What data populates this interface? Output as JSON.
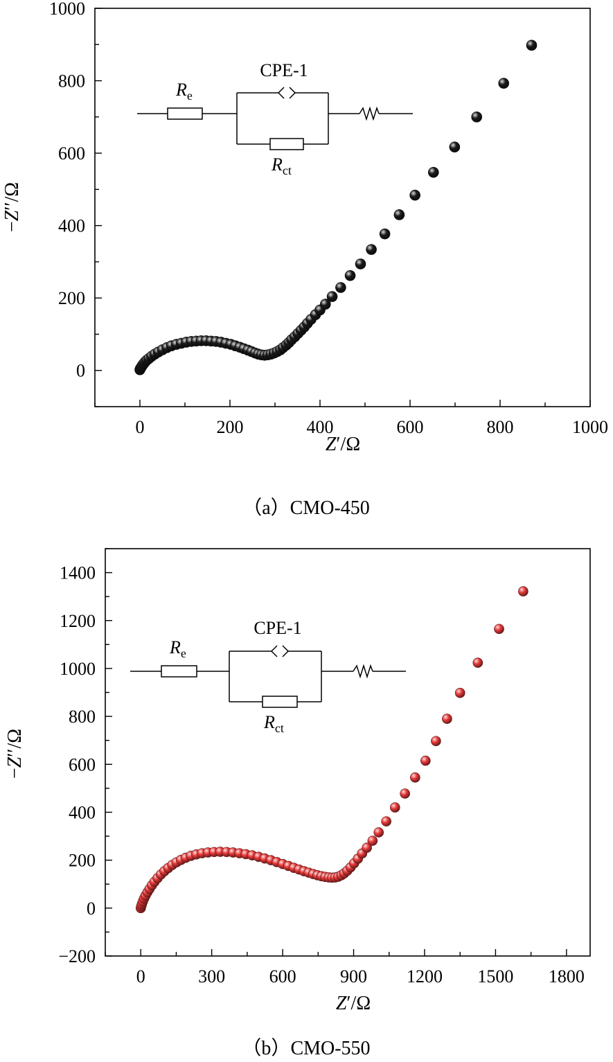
{
  "chart_data": [
    {
      "type": "scatter",
      "title": "（a）CMO-450",
      "caption_prefix": "（a）",
      "caption_label": "CMO-450",
      "xlabel_main": "Z",
      "xlabel_unit": "′/Ω",
      "ylabel_main": "Z",
      "ylabel_prefix": "−",
      "ylabel_unit": "′′/Ω",
      "xlim": [
        -100,
        1000
      ],
      "ylim": [
        -100,
        1000
      ],
      "xticks": [
        0,
        200,
        400,
        600,
        800,
        1000
      ],
      "yticks": [
        0,
        200,
        400,
        600,
        800,
        1000
      ],
      "marker_color": "#1a1a1a",
      "circuit": {
        "re_main": "R",
        "re_sub": "e",
        "cpe": "CPE-1",
        "rct_main": "R",
        "rct_sub": "ct"
      },
      "series": [
        {
          "name": "CMO-450",
          "x": [
            0,
            1,
            3,
            5,
            8,
            11,
            15,
            20,
            26,
            33,
            41,
            50,
            60,
            70,
            81,
            92,
            103,
            114,
            125,
            136,
            147,
            158,
            169,
            180,
            191,
            202,
            212,
            222,
            231,
            240,
            248,
            256,
            263,
            270,
            277,
            284,
            291,
            298,
            305,
            312,
            318,
            325,
            331,
            337,
            344,
            351,
            358,
            365,
            372,
            380,
            390,
            400,
            412,
            427,
            446,
            467,
            490,
            514,
            544,
            576,
            611,
            652,
            699,
            748,
            808,
            870
          ],
          "y": [
            2,
            5,
            9,
            13,
            18,
            23,
            28,
            33,
            39,
            45,
            51,
            57,
            63,
            68,
            72,
            75,
            78,
            80,
            81,
            82,
            82,
            81,
            80,
            78,
            75,
            72,
            68,
            64,
            60,
            56,
            52,
            48,
            45,
            43,
            42,
            43,
            45,
            48,
            52,
            57,
            63,
            70,
            77,
            85,
            93,
            102,
            111,
            120,
            130,
            141,
            154,
            167,
            183,
            204,
            229,
            262,
            294,
            334,
            377,
            430,
            484,
            547,
            617,
            700,
            793,
            898
          ]
        }
      ]
    },
    {
      "type": "scatter",
      "title": "（b）CMO-550",
      "caption_prefix": "（b）",
      "caption_label": "CMO-550",
      "xlabel_main": "Z",
      "xlabel_unit": "′/Ω",
      "ylabel_main": "Z",
      "ylabel_prefix": "−",
      "ylabel_unit": "′′/Ω",
      "xlim": [
        -150,
        1900
      ],
      "ylim": [
        -200,
        1500
      ],
      "xticks": [
        0,
        300,
        600,
        900,
        1200,
        1500,
        1800
      ],
      "yticks": [
        -200,
        0,
        200,
        400,
        600,
        800,
        1000,
        1200,
        1400
      ],
      "marker_color": "#e83a3a",
      "circuit": {
        "re_main": "R",
        "re_sub": "e",
        "cpe": "CPE-1",
        "rct_main": "R",
        "rct_sub": "ct"
      },
      "series": [
        {
          "name": "CMO-550",
          "x": [
            0,
            2,
            5,
            9,
            14,
            20,
            28,
            37,
            47,
            58,
            71,
            85,
            100,
            116,
            133,
            151,
            170,
            190,
            212,
            235,
            259,
            284,
            310,
            336,
            363,
            390,
            417,
            444,
            471,
            498,
            524,
            550,
            575,
            600,
            624,
            647,
            669,
            690,
            710,
            729,
            747,
            764,
            780,
            795,
            809,
            822,
            835,
            848,
            860,
            873,
            887,
            902,
            918,
            936,
            956,
            980,
            1006,
            1038,
            1075,
            1117,
            1160,
            1204,
            1248,
            1295,
            1350,
            1425,
            1515,
            1617
          ],
          "y": [
            0,
            8,
            17,
            28,
            40,
            52,
            66,
            80,
            95,
            110,
            125,
            140,
            154,
            167,
            180,
            191,
            201,
            210,
            218,
            224,
            229,
            232,
            234,
            235,
            234,
            232,
            229,
            225,
            220,
            214,
            207,
            200,
            192,
            184,
            176,
            168,
            161,
            154,
            148,
            142,
            137,
            133,
            130,
            128,
            127,
            128,
            131,
            137,
            145,
            156,
            170,
            187,
            206,
            228,
            252,
            281,
            316,
            362,
            420,
            478,
            545,
            615,
            697,
            790,
            898,
            1024,
            1165,
            1322
          ]
        }
      ]
    }
  ]
}
